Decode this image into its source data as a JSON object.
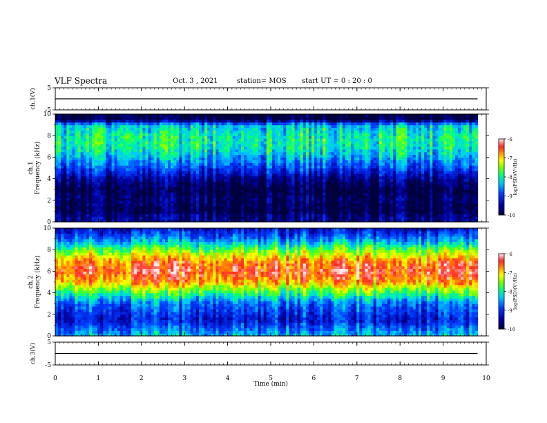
{
  "header": {
    "title": "VLF Spectra",
    "date": "Oct. 3 , 2021",
    "station": "station= MOS",
    "start": "start UT =  0 : 20 : 0"
  },
  "chart_data": {
    "type": "heatmap",
    "title": "VLF Spectra",
    "xlabel": "Time (min)",
    "xlim": [
      0,
      10
    ],
    "x_ticks": [
      "0",
      "1",
      "2",
      "3",
      "4",
      "5",
      "6",
      "7",
      "8",
      "9",
      "10"
    ],
    "panels": [
      {
        "id": "ch1-voltage",
        "type": "line",
        "ylabel": "ch.1(V)",
        "ylim": [
          -5,
          5
        ],
        "y_ticks": [
          "5",
          "-5"
        ],
        "series": [
          {
            "x": [
              0,
              9.8
            ],
            "values": [
              0,
              0
            ]
          }
        ]
      },
      {
        "id": "ch1-spectrogram",
        "type": "heatmap",
        "ylabel_line1": "ch.1",
        "ylabel_line2": "Frequency (kHz)",
        "ylim": [
          0,
          10
        ],
        "y_ticks": [
          "0",
          "2",
          "4",
          "6",
          "8",
          "10"
        ],
        "band_profile": [
          {
            "f": 0.0,
            "level": -9.6
          },
          {
            "f": 0.5,
            "level": -9.6
          },
          {
            "f": 1.0,
            "level": -10
          },
          {
            "f": 2.0,
            "level": -9.8
          },
          {
            "f": 3.0,
            "level": -10
          },
          {
            "f": 4.0,
            "level": -9.6
          },
          {
            "f": 5.0,
            "level": -8.9
          },
          {
            "f": 6.0,
            "level": -8.4
          },
          {
            "f": 7.0,
            "level": -8.0
          },
          {
            "f": 8.0,
            "level": -8.0
          },
          {
            "f": 9.0,
            "level": -8.3
          },
          {
            "f": 9.5,
            "level": -10
          },
          {
            "f": 10.0,
            "level": -10
          }
        ],
        "data_end_min": 9.8,
        "colorbar": {
          "label": "log(PSD)(V²/Hz)",
          "ticks": [
            "-6",
            "-7",
            "-8",
            "-9",
            "-10"
          ],
          "range": [
            -10,
            -6
          ]
        }
      },
      {
        "id": "ch2-spectrogram",
        "type": "heatmap",
        "ylabel_line1": "ch.2",
        "ylabel_line2": "Frequency (kHz)",
        "ylim": [
          0,
          10
        ],
        "y_ticks": [
          "0",
          "2",
          "4",
          "6",
          "8",
          "10"
        ],
        "band_profile": [
          {
            "f": 0.0,
            "level": -8.3
          },
          {
            "f": 0.5,
            "level": -8.6
          },
          {
            "f": 1.5,
            "level": -9.2
          },
          {
            "f": 3.0,
            "level": -8.7
          },
          {
            "f": 4.0,
            "level": -7.8
          },
          {
            "f": 5.0,
            "level": -6.8
          },
          {
            "f": 6.0,
            "level": -6.4
          },
          {
            "f": 7.0,
            "level": -6.7
          },
          {
            "f": 8.0,
            "level": -7.6
          },
          {
            "f": 9.0,
            "level": -8.6
          },
          {
            "f": 10.0,
            "level": -9.3
          }
        ],
        "data_end_min": 9.8,
        "colorbar": {
          "label": "log(PSD)(V²/Hz)",
          "ticks": [
            "-6",
            "-7",
            "-8",
            "-9",
            "-10"
          ],
          "range": [
            -10,
            -6
          ]
        }
      },
      {
        "id": "ch3-voltage",
        "type": "line",
        "ylabel": "ch.3(V)",
        "ylim": [
          -5,
          5
        ],
        "y_ticks": [
          "5",
          "-5"
        ],
        "series": [
          {
            "x": [
              0,
              9.8
            ],
            "values": [
              0,
              0
            ]
          }
        ]
      }
    ]
  }
}
